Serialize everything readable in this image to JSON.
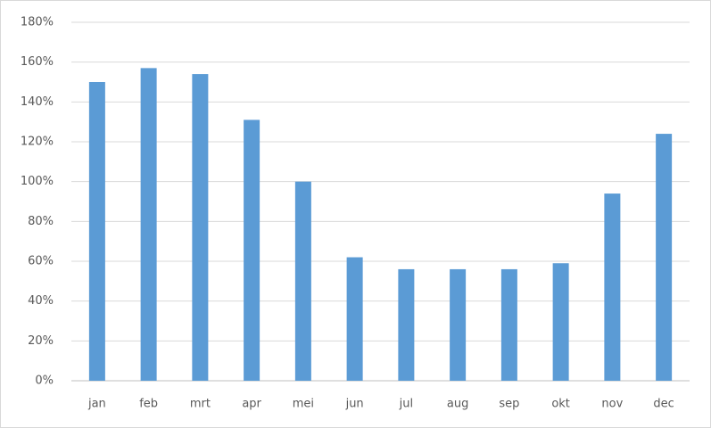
{
  "chart_data": {
    "type": "bar",
    "categories": [
      "jan",
      "feb",
      "mrt",
      "apr",
      "mei",
      "jun",
      "jul",
      "aug",
      "sep",
      "okt",
      "nov",
      "dec"
    ],
    "values": [
      150,
      157,
      154,
      131,
      100,
      62,
      56,
      56,
      56,
      59,
      94,
      124
    ],
    "color": "#5b9bd5",
    "ylim": [
      0,
      180
    ],
    "yticks": [
      {
        "value": 0,
        "label": "0%"
      },
      {
        "value": 20,
        "label": "20%"
      },
      {
        "value": 40,
        "label": "40%"
      },
      {
        "value": 60,
        "label": "60%"
      },
      {
        "value": 80,
        "label": "80%"
      },
      {
        "value": 100,
        "label": "100%"
      },
      {
        "value": 120,
        "label": "120%"
      },
      {
        "value": 140,
        "label": "140%"
      },
      {
        "value": 160,
        "label": "160%"
      },
      {
        "value": 180,
        "label": "180%"
      }
    ],
    "grid": true
  }
}
